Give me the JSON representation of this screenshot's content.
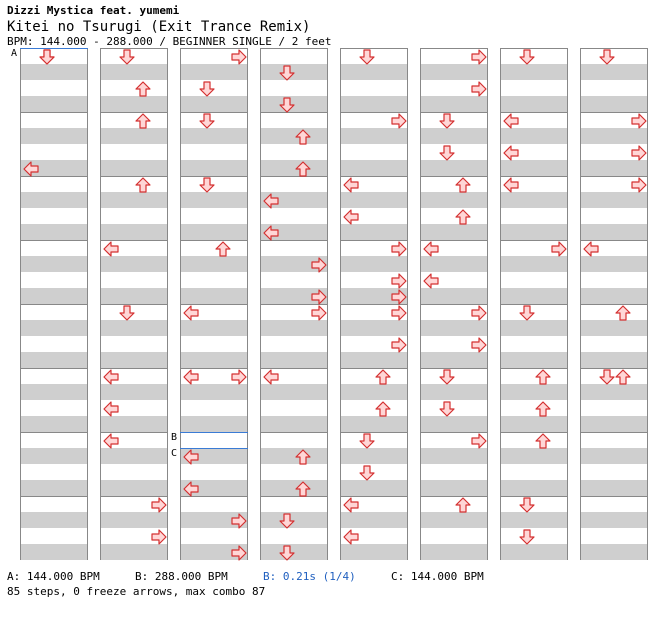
{
  "header": {
    "artist": "Dizzi Mystica feat. yumemi",
    "title": "Kitei no Tsurugi (Exit Trance Remix)",
    "info": "BPM: 144.000 - 288.000 / BEGINNER SINGLE / 2 feet"
  },
  "markers": {
    "a": "A",
    "b": "B",
    "c": "C"
  },
  "footer": {
    "bpm_a": "A: 144.000 BPM",
    "bpm_b": "B: 288.000 BPM",
    "stop_b": "B: 0.21s (1/4)",
    "bpm_c": "C: 144.000 BPM",
    "summary": "85 steps, 0 freeze arrows, max combo 87"
  },
  "colors": {
    "arrow_fill": "#ffd6d6",
    "arrow_stroke": "#d43030",
    "band": "#cfcfcf",
    "marker": "#3a7bd5"
  },
  "columns": [
    [
      [
        "d",
        0
      ],
      [
        "d",
        0
      ],
      [
        "l",
        7
      ]
    ],
    [
      [
        "d",
        0
      ],
      [
        "u",
        2
      ],
      [
        "u",
        4
      ],
      [
        "u",
        8
      ],
      [
        "l",
        12
      ],
      [
        "d",
        16
      ],
      [
        "l",
        20
      ],
      [
        "l",
        22
      ],
      [
        "l",
        24
      ],
      [
        "r",
        28
      ],
      [
        "r",
        30
      ]
    ],
    [
      [
        "r",
        0
      ],
      [
        "d",
        2
      ],
      [
        "d",
        4
      ],
      [
        "d",
        8
      ],
      [
        "u",
        12
      ],
      [
        "l",
        16
      ],
      [
        "l",
        20
      ],
      [
        "r",
        20
      ],
      [
        "l",
        25
      ],
      [
        "l",
        27
      ],
      [
        "r",
        29
      ],
      [
        "r",
        31
      ]
    ],
    [
      [
        "d",
        1
      ],
      [
        "d",
        3
      ],
      [
        "u",
        5
      ],
      [
        "u",
        7
      ],
      [
        "l",
        9
      ],
      [
        "l",
        11
      ],
      [
        "r",
        13
      ],
      [
        "r",
        15
      ],
      [
        "r",
        16
      ],
      [
        "l",
        20
      ],
      [
        "u",
        25
      ],
      [
        "u",
        27
      ],
      [
        "d",
        29
      ],
      [
        "d",
        31
      ]
    ],
    [
      [
        "d",
        0
      ],
      [
        "r",
        4
      ],
      [
        "l",
        8
      ],
      [
        "l",
        10
      ],
      [
        "r",
        12
      ],
      [
        "r",
        14
      ],
      [
        "r",
        15
      ],
      [
        "r",
        16
      ],
      [
        "r",
        18
      ],
      [
        "u",
        20
      ],
      [
        "u",
        22
      ],
      [
        "d",
        24
      ],
      [
        "d",
        26
      ],
      [
        "l",
        28
      ],
      [
        "l",
        30
      ]
    ],
    [
      [
        "r",
        0
      ],
      [
        "r",
        2
      ],
      [
        "d",
        4
      ],
      [
        "d",
        6
      ],
      [
        "u",
        8
      ],
      [
        "u",
        10
      ],
      [
        "l",
        12
      ],
      [
        "l",
        14
      ],
      [
        "r",
        16
      ],
      [
        "r",
        18
      ],
      [
        "d",
        20
      ],
      [
        "d",
        22
      ],
      [
        "r",
        24
      ],
      [
        "u",
        28
      ]
    ],
    [
      [
        "d",
        0
      ],
      [
        "l",
        4
      ],
      [
        "l",
        6
      ],
      [
        "l",
        8
      ],
      [
        "r",
        12
      ],
      [
        "d",
        16
      ],
      [
        "u",
        20
      ],
      [
        "u",
        22
      ],
      [
        "u",
        24
      ],
      [
        "d",
        28
      ],
      [
        "d",
        30
      ]
    ],
    [
      [
        "d",
        0
      ],
      [
        "r",
        4
      ],
      [
        "r",
        6
      ],
      [
        "r",
        8
      ],
      [
        "l",
        12
      ],
      [
        "u",
        16
      ],
      [
        "d",
        20
      ],
      [
        "u",
        20
      ]
    ]
  ]
}
